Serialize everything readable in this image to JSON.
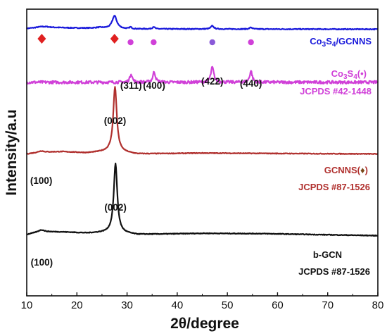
{
  "chart_data": {
    "type": "line",
    "title": "",
    "xlabel": "2θ/degree",
    "ylabel": "Intensity/a.u",
    "xlim": [
      10,
      80
    ],
    "xticks": [
      10,
      20,
      30,
      40,
      50,
      60,
      70,
      80
    ],
    "y_ticks_shown": false,
    "grid": false,
    "series": [
      {
        "name": "Co3S4/GCNNS",
        "color": "#1a1adb",
        "baseline": 0.93,
        "noise": 0.0015,
        "background": [
          [
            10,
            0.002
          ],
          [
            14,
            0.006
          ],
          [
            20,
            0.004
          ],
          [
            30,
            0.001
          ],
          [
            80,
            0.0
          ]
        ],
        "peaks": [
          [
            13.0,
            0.004,
            1.5
          ],
          [
            24.5,
            0.003,
            1.2
          ],
          [
            27.5,
            0.045,
            0.55
          ],
          [
            30.7,
            0.006,
            0.25
          ],
          [
            35.3,
            0.008,
            0.25
          ],
          [
            47.0,
            0.011,
            0.35
          ],
          [
            54.7,
            0.006,
            0.3
          ]
        ]
      },
      {
        "name": "Co3S4",
        "color": "#d040d8",
        "baseline": 0.745,
        "noise": 0.005,
        "background": [
          [
            10,
            0.0
          ],
          [
            80,
            0.0
          ]
        ],
        "peaks": [
          [
            30.8,
            0.03,
            0.28
          ],
          [
            35.4,
            0.037,
            0.3
          ],
          [
            47.0,
            0.052,
            0.35
          ],
          [
            54.7,
            0.04,
            0.3
          ]
        ]
      },
      {
        "name": "GCNNS",
        "color": "#b0302e",
        "baseline": 0.495,
        "noise": 0.0012,
        "background": [
          [
            10,
            0.0
          ],
          [
            12.5,
            0.006
          ],
          [
            17,
            0.008
          ],
          [
            22,
            0.004
          ],
          [
            27,
            0.01
          ],
          [
            32,
            0.0
          ],
          [
            45,
            0.003
          ],
          [
            55,
            0.002
          ],
          [
            80,
            0.0
          ]
        ],
        "peaks": [
          [
            27.6,
            0.225,
            0.42
          ],
          [
            12.9,
            0.004,
            0.6
          ]
        ]
      },
      {
        "name": "b-GCN",
        "color": "#111111",
        "baseline": 0.21,
        "noise": 0.0012,
        "background": [
          [
            10,
            0.004
          ],
          [
            12.5,
            0.014
          ],
          [
            17,
            0.013
          ],
          [
            22,
            0.009
          ],
          [
            27,
            0.012
          ],
          [
            32,
            0.004
          ],
          [
            45,
            0.008
          ],
          [
            57,
            0.007
          ],
          [
            80,
            0.0
          ]
        ],
        "peaks": [
          [
            27.7,
            0.24,
            0.42
          ],
          [
            13.0,
            0.006,
            0.6
          ]
        ]
      }
    ],
    "annotations": {
      "series_labels": [
        {
          "id": "co3s4-gcnns",
          "text": "Co3S4/GCNNS",
          "color": "#1a1adb"
        },
        {
          "id": "co3s4",
          "text": "Co3S4(•)",
          "color": "#d040d8"
        },
        {
          "id": "co3s4-jcpds",
          "text": "JCPDS #42-1448",
          "color": "#d040d8"
        },
        {
          "id": "gcnns",
          "text": "GCNNS(♦)",
          "color": "#b0302e"
        },
        {
          "id": "gcnns-jcpds",
          "text": "JCPDS #87-1526",
          "color": "#b0302e"
        },
        {
          "id": "bgcn",
          "text": "b-GCN",
          "color": "#111111"
        },
        {
          "id": "bgcn-jcpds",
          "text": "JCPDS #87-1526",
          "color": "#111111"
        }
      ],
      "peak_labels": [
        {
          "text": "(311)",
          "x": 30.8
        },
        {
          "text": "(400)",
          "x": 35.4
        },
        {
          "text": "(422)",
          "x": 47.0
        },
        {
          "text": "(440)",
          "x": 54.7
        },
        {
          "text": "(002)",
          "x": 27.6
        },
        {
          "text": "(100)",
          "x": 12.9
        },
        {
          "text": "(002)",
          "x": 27.7
        },
        {
          "text": "(100)",
          "x": 13.0
        }
      ],
      "markers": [
        {
          "shape": "diamond",
          "x": 13.0,
          "color": "#e02020"
        },
        {
          "shape": "diamond",
          "x": 27.5,
          "color": "#e02020"
        },
        {
          "shape": "dot",
          "x": 30.7,
          "color": "#d040d8"
        },
        {
          "shape": "dot",
          "x": 35.3,
          "color": "#d040d8"
        },
        {
          "shape": "dot",
          "x": 47.0,
          "color": "#8a5ad8"
        },
        {
          "shape": "dot",
          "x": 54.7,
          "color": "#d040d8"
        }
      ]
    }
  }
}
